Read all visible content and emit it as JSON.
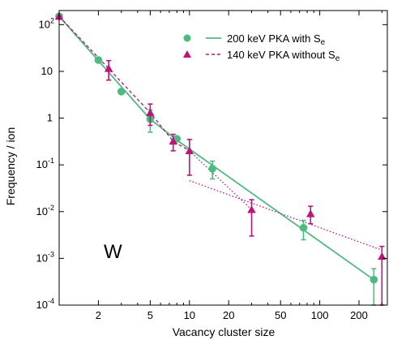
{
  "chart_data": {
    "type": "scatter",
    "panel_label": "W",
    "xlabel": "Vacancy cluster size",
    "ylabel": "Frequency / ion",
    "xscale": "log",
    "yscale": "log",
    "xlim": [
      1,
      330
    ],
    "ylim": [
      0.0001,
      200
    ],
    "x_ticks": [
      {
        "value": 2,
        "label": "2"
      },
      {
        "value": 5,
        "label": "5"
      },
      {
        "value": 10,
        "label": "10"
      },
      {
        "value": 20,
        "label": "20"
      },
      {
        "value": 50,
        "label": "50"
      },
      {
        "value": 100,
        "label": "100"
      },
      {
        "value": 200,
        "label": "200"
      }
    ],
    "y_ticks": [
      {
        "value": 0.0001,
        "base": "10",
        "exp": "-4"
      },
      {
        "value": 0.001,
        "base": "10",
        "exp": "-3"
      },
      {
        "value": 0.01,
        "base": "10",
        "exp": "-2"
      },
      {
        "value": 0.1,
        "base": "10",
        "exp": "-1"
      },
      {
        "value": 1,
        "base": "1",
        "exp": ""
      },
      {
        "value": 10,
        "base": "10",
        "exp": ""
      },
      {
        "value": 100,
        "base": "10",
        "exp": "2"
      }
    ],
    "grid": false,
    "legend_position": "top-right",
    "series": [
      {
        "label_main": "200 keV PKA with S",
        "label_sub": "e",
        "marker": "circle",
        "color": "#4cbb7f",
        "line_style": "solid",
        "points": [
          {
            "x": 1,
            "y": 150,
            "lo": null,
            "hi": null
          },
          {
            "x": 2,
            "y": 17.5,
            "lo": null,
            "hi": null
          },
          {
            "x": 3,
            "y": 3.7,
            "lo": null,
            "hi": null
          },
          {
            "x": 5,
            "y": 0.95,
            "lo": 0.5,
            "hi": 1.5
          },
          {
            "x": 8,
            "y": 0.36,
            "lo": null,
            "hi": null
          },
          {
            "x": 15,
            "y": 0.083,
            "lo": 0.05,
            "hi": 0.12
          },
          {
            "x": 75,
            "y": 0.0045,
            "lo": 0.0025,
            "hi": 0.0065
          },
          {
            "x": 260,
            "y": 0.00035,
            "lo": 0.0001,
            "hi": 0.0006
          }
        ],
        "fit": [
          {
            "x": 1,
            "y": 150
          },
          {
            "x": 2,
            "y": 17
          },
          {
            "x": 3,
            "y": 4.7
          },
          {
            "x": 5,
            "y": 0.95
          },
          {
            "x": 8,
            "y": 0.34
          },
          {
            "x": 260,
            "y": 0.00035
          }
        ]
      },
      {
        "label_main": "140 keV PKA without S",
        "label_sub": "e",
        "marker": "triangle",
        "color": "#c0127a",
        "line_style": "dashed",
        "points": [
          {
            "x": 1,
            "y": 150,
            "lo": null,
            "hi": null
          },
          {
            "x": 2.4,
            "y": 11.5,
            "lo": 6.5,
            "hi": 17
          },
          {
            "x": 5,
            "y": 1.3,
            "lo": 0.7,
            "hi": 2
          },
          {
            "x": 7.5,
            "y": 0.32,
            "lo": 0.2,
            "hi": 0.45
          },
          {
            "x": 10,
            "y": 0.2,
            "lo": 0.06,
            "hi": 0.35
          },
          {
            "x": 30,
            "y": 0.011,
            "lo": 0.003,
            "hi": 0.018
          },
          {
            "x": 85,
            "y": 0.009,
            "lo": 0.0055,
            "hi": 0.013
          },
          {
            "x": 300,
            "y": 0.0011,
            "lo": 0.0001,
            "hi": 0.0018
          }
        ],
        "fit_dashed": [
          {
            "x": 1,
            "y": 150
          },
          {
            "x": 2.4,
            "y": 11.5
          },
          {
            "x": 5,
            "y": 1.3
          },
          {
            "x": 7.5,
            "y": 0.32
          },
          {
            "x": 10,
            "y": 0.2
          }
        ],
        "fit_dotted": [
          [
            {
              "x": 10,
              "y": 0.2
            },
            {
              "x": 30,
              "y": 0.011
            }
          ],
          [
            {
              "x": 10,
              "y": 0.046
            },
            {
              "x": 300,
              "y": 0.0015
            }
          ]
        ]
      }
    ]
  }
}
